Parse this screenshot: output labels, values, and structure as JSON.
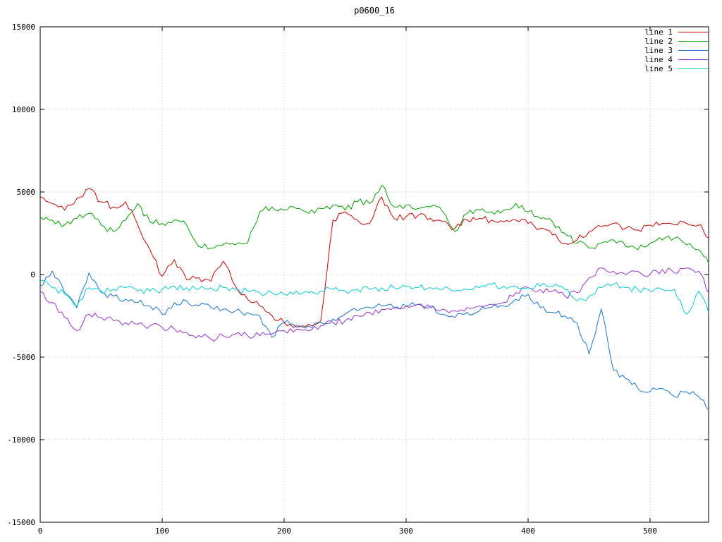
{
  "chart_data": {
    "type": "line",
    "title": "p0600_16",
    "xlabel": "",
    "ylabel": "",
    "xlim": [
      0,
      548
    ],
    "ylim": [
      -15000,
      15000
    ],
    "xticks": [
      0,
      100,
      200,
      300,
      400,
      500
    ],
    "yticks": [
      -15000,
      -10000,
      -5000,
      0,
      5000,
      10000,
      15000
    ],
    "grid": true,
    "grid_color": "#b8b8b8",
    "border_color": "#000000",
    "legend_position": "top-right-inside",
    "x": [
      0,
      10,
      20,
      30,
      40,
      50,
      60,
      70,
      80,
      90,
      100,
      110,
      120,
      130,
      140,
      150,
      160,
      170,
      180,
      190,
      200,
      210,
      220,
      230,
      240,
      250,
      260,
      270,
      280,
      290,
      300,
      310,
      320,
      330,
      340,
      350,
      360,
      370,
      380,
      390,
      400,
      410,
      420,
      430,
      440,
      450,
      460,
      470,
      480,
      490,
      500,
      510,
      520,
      530,
      540,
      548
    ],
    "series": [
      {
        "name": "line 1",
        "color": "#cc0000",
        "values": [
          4700,
          4300,
          3900,
          4600,
          5200,
          4400,
          4100,
          4400,
          3000,
          1500,
          -100,
          900,
          -300,
          -200,
          -400,
          800,
          -700,
          -1500,
          -1900,
          -2500,
          -2900,
          -3100,
          -3000,
          -2800,
          3300,
          3800,
          3300,
          3100,
          4700,
          3400,
          3500,
          3600,
          3400,
          3200,
          2800,
          3300,
          3400,
          3300,
          3200,
          3300,
          3100,
          2800,
          2400,
          1900,
          2100,
          2600,
          2900,
          3100,
          2800,
          2700,
          3000,
          3100,
          3000,
          3100,
          3000,
          2200
        ]
      },
      {
        "name": "line 2",
        "color": "#00a000",
        "values": [
          3500,
          3300,
          3000,
          3400,
          3700,
          3000,
          2600,
          3300,
          4300,
          3200,
          3100,
          3300,
          3000,
          1700,
          1600,
          1800,
          1800,
          1900,
          3800,
          4100,
          3900,
          4000,
          3700,
          4000,
          4200,
          3900,
          4400,
          4300,
          5400,
          4100,
          4200,
          4000,
          4100,
          3800,
          2600,
          3700,
          3900,
          3800,
          3900,
          4300,
          3800,
          3400,
          3200,
          2500,
          1900,
          1600,
          1900,
          2100,
          1700,
          1500,
          1900,
          2100,
          2200,
          1800,
          1500,
          700
        ]
      },
      {
        "name": "line 3",
        "color": "#1874cd",
        "values": [
          -700,
          200,
          -1100,
          -2000,
          100,
          -1100,
          -1300,
          -1500,
          -1700,
          -1900,
          -2400,
          -1700,
          -1600,
          -1900,
          -2000,
          -2100,
          -2200,
          -2300,
          -2500,
          -3800,
          -2900,
          -3200,
          -3100,
          -2900,
          -2700,
          -2400,
          -2200,
          -2000,
          -1900,
          -2000,
          -1900,
          -1800,
          -1900,
          -2400,
          -2600,
          -2300,
          -2200,
          -2000,
          -1900,
          -1500,
          -1200,
          -2000,
          -2300,
          -2500,
          -2900,
          -4800,
          -2100,
          -5800,
          -6300,
          -6900,
          -7100,
          -6900,
          -7400,
          -7100,
          -7400,
          -8200
        ]
      },
      {
        "name": "line 4",
        "color": "#9932cc",
        "values": [
          -1000,
          -1700,
          -2600,
          -3400,
          -2400,
          -2600,
          -2800,
          -2900,
          -3000,
          -3100,
          -3200,
          -3300,
          -3500,
          -3700,
          -3900,
          -3700,
          -3600,
          -3700,
          -3700,
          -3600,
          -3400,
          -3300,
          -3400,
          -3100,
          -2900,
          -2800,
          -2500,
          -2300,
          -2100,
          -2000,
          -1900,
          -1800,
          -2000,
          -2100,
          -2200,
          -2000,
          -1900,
          -1800,
          -1700,
          -1100,
          -800,
          -900,
          -1000,
          -1300,
          -1100,
          -200,
          400,
          200,
          0,
          200,
          0,
          300,
          100,
          400,
          200,
          -1100
        ]
      },
      {
        "name": "line 5",
        "color": "#00cdcd",
        "values": [
          -400,
          -800,
          -1200,
          -1900,
          -800,
          -1000,
          -900,
          -800,
          -1000,
          -1000,
          -900,
          -700,
          -800,
          -900,
          -800,
          -800,
          -900,
          -1000,
          -1100,
          -1100,
          -1200,
          -1000,
          -1100,
          -1000,
          -900,
          -1000,
          -900,
          -900,
          -800,
          -800,
          -700,
          -800,
          -800,
          -900,
          -1000,
          -900,
          -800,
          -600,
          -700,
          -700,
          -800,
          -700,
          -700,
          -900,
          -1600,
          -1300,
          -800,
          -600,
          -800,
          -900,
          -1000,
          -900,
          -900,
          -2400,
          -1000,
          -2300
        ]
      }
    ]
  }
}
